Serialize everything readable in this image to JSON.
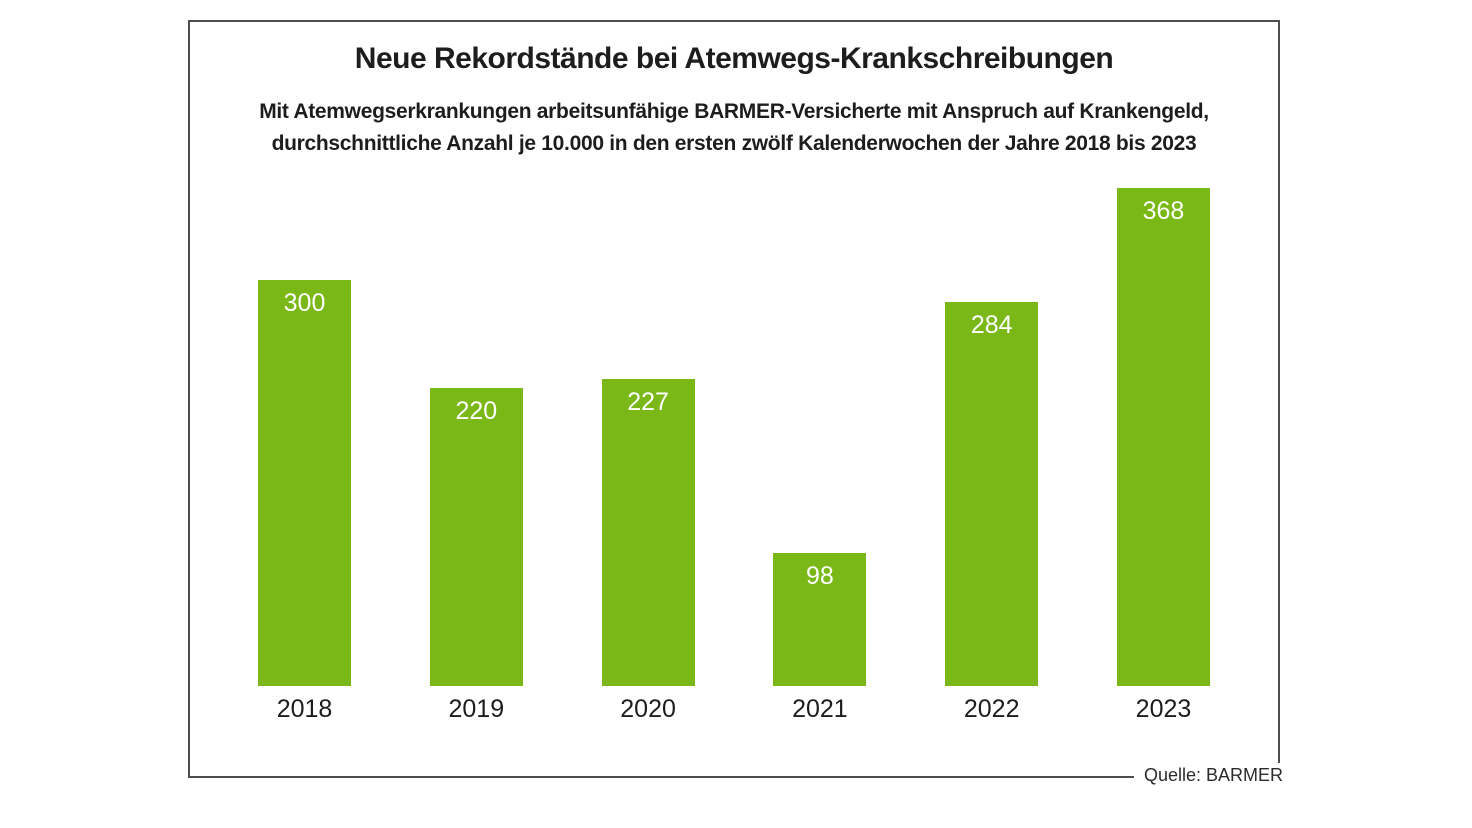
{
  "chart_data": {
    "type": "bar",
    "title": "Neue Rekordstände bei Atemwegs-Krankschreibungen",
    "subtitle_line1": "Mit Atemwegserkrankungen arbeitsunfähige BARMER-Versicherte mit Anspruch auf Krankengeld,",
    "subtitle_line2": "durchschnittliche Anzahl je 10.000 in den ersten zwölf Kalenderwochen der Jahre 2018 bis 2023",
    "categories": [
      "2018",
      "2019",
      "2020",
      "2021",
      "2022",
      "2023"
    ],
    "values": [
      300,
      220,
      227,
      98,
      284,
      368
    ],
    "xlabel": "",
    "ylabel": "",
    "ylim": [
      0,
      368
    ],
    "grid": false,
    "legend_position": "none",
    "bar_color": "#7ab817",
    "value_label_color": "#ffffff"
  },
  "source": "Quelle: BARMER"
}
